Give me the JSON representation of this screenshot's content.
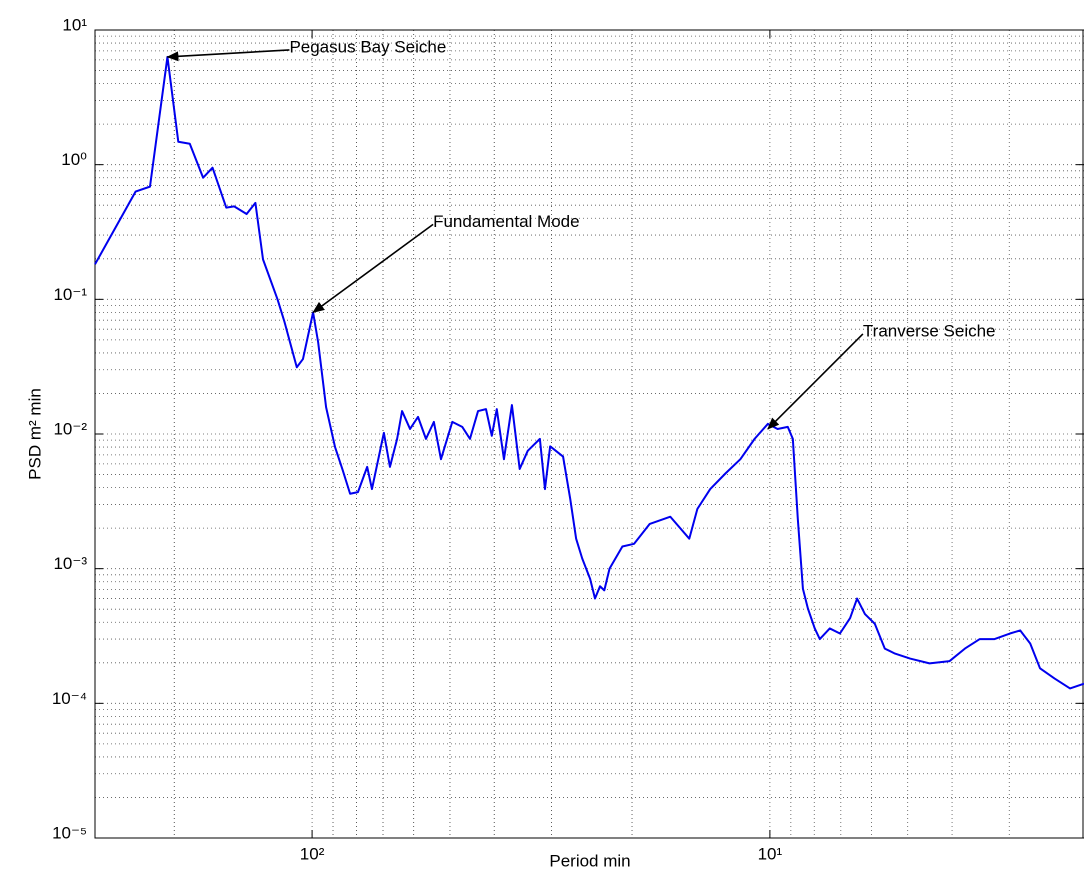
{
  "chart_data": {
    "type": "line",
    "x_label": "Period min",
    "y_label": "PSD m² min",
    "x_log": true,
    "y_log": true,
    "grid": true,
    "minor_grid": true,
    "color": "#0000ee",
    "xlim": [
      298,
      2.06
    ],
    "ylim": [
      1e-05,
      10
    ],
    "xticks": [
      {
        "value": 100,
        "label": "10²"
      },
      {
        "value": 10,
        "label": "10¹"
      }
    ],
    "yticks": [
      {
        "value": 1e-05,
        "label": "10⁻⁵"
      },
      {
        "value": 0.0001,
        "label": "10⁻⁴"
      },
      {
        "value": 0.001,
        "label": "10⁻³"
      },
      {
        "value": 0.01,
        "label": "10⁻²"
      },
      {
        "value": 0.1,
        "label": "10⁻¹"
      },
      {
        "value": 1,
        "label": "10⁰"
      },
      {
        "value": 10,
        "label": "10¹"
      }
    ],
    "x": [
      298,
      243,
      226,
      207,
      196,
      185,
      173,
      165,
      154,
      148,
      139,
      133,
      128,
      119,
      115,
      108,
      104.7,
      99.5,
      97,
      93.2,
      89.1,
      85.9,
      82.6,
      79.4,
      75.8,
      74.0,
      69.7,
      67.6,
      65.2,
      63.6,
      61.1,
      58.7,
      56.4,
      54.2,
      52.3,
      49.4,
      47.0,
      45.2,
      43.4,
      41.7,
      40.5,
      39.5,
      38.1,
      36.6,
      35.2,
      33.8,
      31.8,
      31.0,
      30.2,
      28.3,
      27.3,
      26.5,
      25.7,
      24.7,
      24.1,
      23.5,
      23.0,
      22.4,
      21.0,
      19.8,
      18.3,
      16.5,
      15.0,
      14.4,
      13.5,
      12.5,
      11.6,
      10.8,
      10.1,
      9.62,
      9.14,
      8.91,
      8.69,
      8.47,
      8.26,
      7.98,
      7.78,
      7.4,
      7.03,
      6.68,
      6.45,
      6.2,
      5.9,
      5.61,
      5.33,
      4.94,
      4.48,
      4.05,
      3.75,
      3.48,
      3.23,
      2.99,
      2.84,
      2.7,
      2.57,
      2.39,
      2.21,
      2.06
    ],
    "values": [
      0.182,
      0.631,
      0.687,
      6.31,
      1.48,
      1.43,
      0.8,
      0.95,
      0.48,
      0.49,
      0.43,
      0.52,
      0.198,
      0.1,
      0.0687,
      0.0313,
      0.036,
      0.08,
      0.048,
      0.0158,
      0.008,
      0.0055,
      0.0036,
      0.0037,
      0.0057,
      0.0039,
      0.0102,
      0.0057,
      0.0092,
      0.0148,
      0.0109,
      0.0134,
      0.0092,
      0.0123,
      0.0065,
      0.0123,
      0.0113,
      0.0092,
      0.0148,
      0.0153,
      0.0097,
      0.0153,
      0.0065,
      0.0164,
      0.0055,
      0.0075,
      0.0092,
      0.0039,
      0.0081,
      0.0068,
      0.0033,
      0.00167,
      0.00119,
      0.00084,
      0.0006,
      0.00074,
      0.00069,
      0.001,
      0.00146,
      0.00153,
      0.00215,
      0.00243,
      0.00167,
      0.00278,
      0.0039,
      0.0051,
      0.0065,
      0.0092,
      0.0119,
      0.0109,
      0.0113,
      0.0092,
      0.00234,
      0.00071,
      0.000506,
      0.00036,
      0.0003,
      0.00036,
      0.00033,
      0.00043,
      0.0006,
      0.00046,
      0.00039,
      0.000255,
      0.000234,
      0.000215,
      0.000198,
      0.000206,
      0.000255,
      0.0003,
      0.0003,
      0.00033,
      0.000348,
      0.000278,
      0.000182,
      0.000153,
      0.000129,
      0.00014
    ],
    "annotations": [
      {
        "text": "Pegasus Bay Seiche",
        "x": 207,
        "y": 6.31
      },
      {
        "text": "Fundamental Mode",
        "x": 99.5,
        "y": 0.08
      },
      {
        "text": "Tranverse Seiche",
        "x": 10.1,
        "y": 0.0109
      }
    ]
  }
}
